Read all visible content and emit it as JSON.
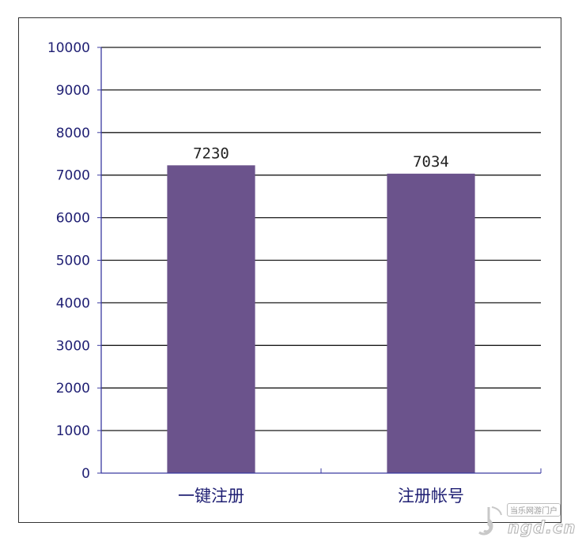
{
  "chart_data": {
    "type": "bar",
    "categories": [
      "一键注册",
      "注册帐号"
    ],
    "values": [
      7230,
      7034
    ],
    "data_labels": [
      "7230",
      "7034"
    ],
    "ylim": [
      0,
      10000
    ],
    "yticks": [
      0,
      1000,
      2000,
      3000,
      4000,
      5000,
      6000,
      7000,
      8000,
      9000,
      10000
    ],
    "ytick_labels": [
      "0",
      "1000",
      "2000",
      "3000",
      "4000",
      "5000",
      "6000",
      "7000",
      "8000",
      "9000",
      "10000"
    ],
    "grid": true,
    "legend": "none",
    "title": "",
    "xlabel": "",
    "ylabel": "",
    "colors": {
      "bar": "#6b538c",
      "grid": "#1a1a1a",
      "axis": "#3a3aa0",
      "text": "#1f1f73"
    }
  },
  "watermark": {
    "site_name": "当乐网游门户",
    "domain": "ngd.cn"
  }
}
